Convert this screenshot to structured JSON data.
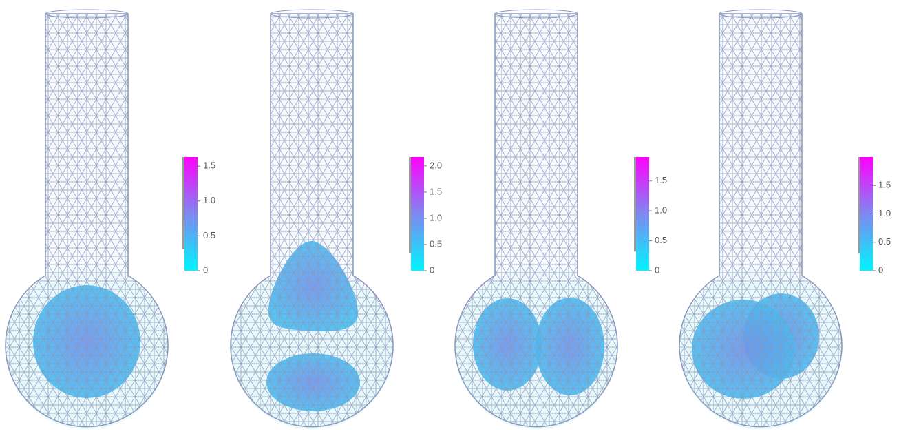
{
  "panels": [
    {
      "colorbar": {
        "lim": [
          0,
          1.63
        ],
        "shaded_range": [
          0.31,
          1.63
        ],
        "ticks": [
          0,
          0.5,
          {
            "value": 1,
            "label": "1.0"
          },
          1.5
        ]
      }
    },
    {
      "colorbar": {
        "lim": [
          0,
          2.17
        ],
        "shaded_range": [
          0.33,
          2.17
        ],
        "ticks": [
          0,
          0.5,
          {
            "value": 1,
            "label": "1.0"
          },
          1.5,
          {
            "value": 2,
            "label": "2.0"
          }
        ]
      }
    },
    {
      "colorbar": {
        "lim": [
          0,
          1.9
        ],
        "shaded_range": [
          0.32,
          1.9
        ],
        "ticks": [
          0,
          0.5,
          {
            "value": 1,
            "label": "1.0"
          },
          1.5
        ]
      }
    },
    {
      "colorbar": {
        "lim": [
          0,
          2.0
        ],
        "shaded_range": [
          0.3,
          2.0
        ],
        "ticks": [
          0,
          0.5,
          {
            "value": 1,
            "label": "1.0"
          },
          1.5
        ]
      }
    }
  ]
}
